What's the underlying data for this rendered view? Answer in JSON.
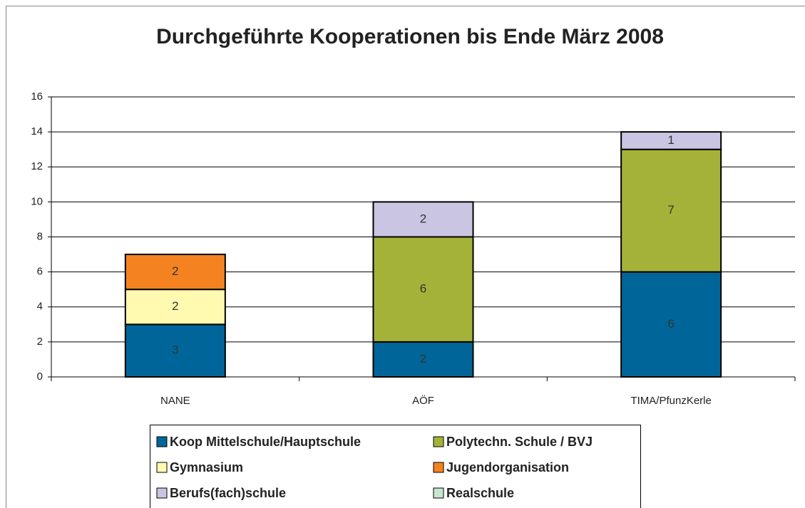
{
  "chart_data": {
    "type": "stacked_bar",
    "title": "Durchgeführte Kooperationen bis Ende März 2008",
    "categories": [
      "NANE",
      "AÖF",
      "TIMA/PfunzKerle"
    ],
    "series": [
      {
        "name": "Koop Mittelschule/Hauptschule",
        "color": "#006699",
        "values": [
          3,
          2,
          6
        ]
      },
      {
        "name": "Polytechn. Schule / BVJ",
        "color": "#a5b23a",
        "values": [
          0,
          6,
          7
        ]
      },
      {
        "name": "Gymnasium",
        "color": "#fffab0",
        "values": [
          2,
          0,
          0
        ]
      },
      {
        "name": "Jugendorganisation",
        "color": "#f58220",
        "values": [
          2,
          0,
          0
        ]
      },
      {
        "name": "Berufs(fach)schule",
        "color": "#c9c5e2",
        "values": [
          0,
          2,
          1
        ]
      },
      {
        "name": "Realschule",
        "color": "#c8e6d0",
        "values": [
          0,
          0,
          0
        ]
      }
    ],
    "ylim": [
      0,
      16
    ],
    "yticks": [
      0,
      2,
      4,
      6,
      8,
      10,
      12,
      14,
      16
    ],
    "grid": true,
    "legend": "bottom"
  }
}
